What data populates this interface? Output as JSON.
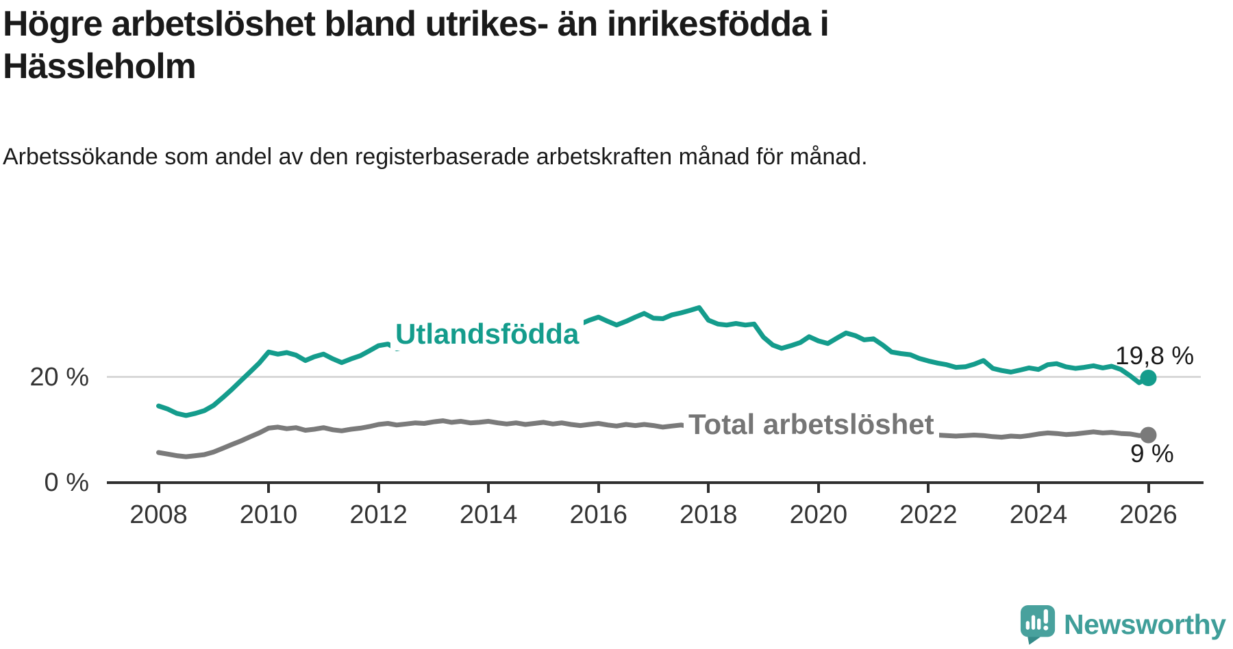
{
  "chart_data": {
    "type": "line",
    "title": "Högre arbetslöshet bland utrikes- än inrikesfödda i Hässleholm",
    "subtitle": "Arbetssökande som andel av den registerbaserade arbetskraften månad för månad.",
    "unit": "%",
    "xlim": [
      2007.1,
      2027.0
    ],
    "ylim": [
      0,
      42
    ],
    "grid": "horizontal-20-only",
    "legend_position": "inline-labels",
    "x_ticks": [
      2008,
      2010,
      2012,
      2014,
      2016,
      2018,
      2020,
      2022,
      2024,
      2026
    ],
    "y_ticks": [
      {
        "value": 20,
        "label": "20 %"
      },
      {
        "value": 0,
        "label": "0 %"
      }
    ],
    "gridline_values": [
      20
    ],
    "x": [
      2008.0,
      2008.17,
      2008.33,
      2008.5,
      2008.67,
      2008.83,
      2009.0,
      2009.17,
      2009.33,
      2009.5,
      2009.67,
      2009.83,
      2010.0,
      2010.17,
      2010.33,
      2010.5,
      2010.67,
      2010.83,
      2011.0,
      2011.17,
      2011.33,
      2011.5,
      2011.67,
      2011.83,
      2012.0,
      2012.17,
      2012.33,
      2012.5,
      2012.67,
      2012.83,
      2013.0,
      2013.17,
      2013.33,
      2013.5,
      2013.67,
      2013.83,
      2014.0,
      2014.17,
      2014.33,
      2014.5,
      2014.67,
      2014.83,
      2015.0,
      2015.17,
      2015.33,
      2015.5,
      2015.67,
      2015.83,
      2016.0,
      2016.17,
      2016.33,
      2016.5,
      2016.67,
      2016.83,
      2017.0,
      2017.17,
      2017.33,
      2017.5,
      2017.67,
      2017.83,
      2018.0,
      2018.17,
      2018.33,
      2018.5,
      2018.67,
      2018.83,
      2019.0,
      2019.17,
      2019.33,
      2019.5,
      2019.67,
      2019.83,
      2020.0,
      2020.17,
      2020.33,
      2020.5,
      2020.67,
      2020.83,
      2021.0,
      2021.17,
      2021.33,
      2021.5,
      2021.67,
      2021.83,
      2022.0,
      2022.17,
      2022.33,
      2022.5,
      2022.67,
      2022.83,
      2023.0,
      2023.17,
      2023.33,
      2023.5,
      2023.67,
      2023.83,
      2024.0,
      2024.17,
      2024.33,
      2024.5,
      2024.67,
      2024.83,
      2025.0,
      2025.17,
      2025.33,
      2025.5,
      2025.67,
      2025.83,
      2026.0
    ],
    "series": [
      {
        "name": "Utlandsfödda",
        "color": "#149c8c",
        "end_label": "19,8 %",
        "end_value": 19.8,
        "values": [
          14.5,
          13.9,
          13.1,
          12.7,
          13.1,
          13.6,
          14.6,
          16.1,
          17.6,
          19.3,
          21.0,
          22.6,
          24.7,
          24.3,
          24.6,
          24.1,
          23.1,
          23.8,
          24.3,
          23.4,
          22.7,
          23.4,
          24.0,
          24.9,
          25.9,
          26.2,
          25.3,
          25.7,
          26.1,
          26.4,
          26.2,
          26.6,
          27.0,
          27.2,
          27.0,
          27.5,
          28.0,
          28.2,
          27.9,
          28.4,
          28.8,
          29.1,
          28.9,
          29.3,
          29.6,
          29.4,
          30.0,
          30.7,
          31.3,
          30.5,
          29.8,
          30.5,
          31.3,
          32.0,
          31.1,
          31.0,
          31.7,
          32.1,
          32.6,
          33.1,
          30.7,
          30.0,
          29.8,
          30.1,
          29.8,
          30.0,
          27.5,
          26.0,
          25.4,
          25.9,
          26.5,
          27.6,
          26.8,
          26.3,
          27.3,
          28.3,
          27.8,
          27.0,
          27.2,
          26.0,
          24.7,
          24.4,
          24.2,
          23.5,
          23.0,
          22.6,
          22.3,
          21.8,
          21.9,
          22.4,
          23.1,
          21.6,
          21.2,
          20.9,
          21.3,
          21.7,
          21.4,
          22.3,
          22.5,
          21.9,
          21.6,
          21.8,
          22.1,
          21.7,
          22.0,
          21.4,
          20.2,
          18.9,
          19.8
        ]
      },
      {
        "name": "Total arbetslöshet",
        "color": "#7a7a7a",
        "end_label": "9 %",
        "end_value": 9.0,
        "values": [
          5.7,
          5.4,
          5.1,
          4.9,
          5.1,
          5.3,
          5.8,
          6.5,
          7.2,
          7.9,
          8.7,
          9.4,
          10.3,
          10.5,
          10.2,
          10.4,
          9.9,
          10.1,
          10.4,
          10.0,
          9.8,
          10.1,
          10.3,
          10.6,
          11.0,
          11.2,
          10.9,
          11.1,
          11.3,
          11.2,
          11.5,
          11.7,
          11.4,
          11.6,
          11.3,
          11.4,
          11.6,
          11.3,
          11.1,
          11.3,
          11.0,
          11.2,
          11.4,
          11.1,
          11.3,
          11.0,
          10.8,
          11.0,
          11.2,
          10.9,
          10.7,
          11.0,
          10.8,
          11.0,
          10.8,
          10.5,
          10.7,
          10.9,
          10.6,
          10.7,
          10.4,
          10.2,
          10.0,
          10.1,
          9.9,
          10.0,
          9.8,
          9.6,
          9.5,
          9.7,
          9.6,
          9.8,
          10.0,
          10.6,
          11.2,
          11.4,
          11.2,
          11.0,
          11.1,
          10.7,
          10.3,
          10.0,
          9.7,
          9.4,
          9.2,
          9.0,
          8.9,
          8.8,
          8.9,
          9.0,
          8.9,
          8.7,
          8.6,
          8.8,
          8.7,
          8.9,
          9.2,
          9.4,
          9.3,
          9.1,
          9.2,
          9.4,
          9.6,
          9.4,
          9.5,
          9.3,
          9.2,
          8.9,
          9.0
        ]
      }
    ]
  },
  "branding": {
    "name": "Newsworthy",
    "color": "#3f9e99",
    "icon_color": "#48a19d",
    "icon_tail_color": "#358b89"
  },
  "colors": {
    "axis": "#2f2f2f",
    "tick_label": "#333333",
    "gridline": "#d8d8d8",
    "text": "#1a1a1a",
    "background": "#ffffff"
  }
}
